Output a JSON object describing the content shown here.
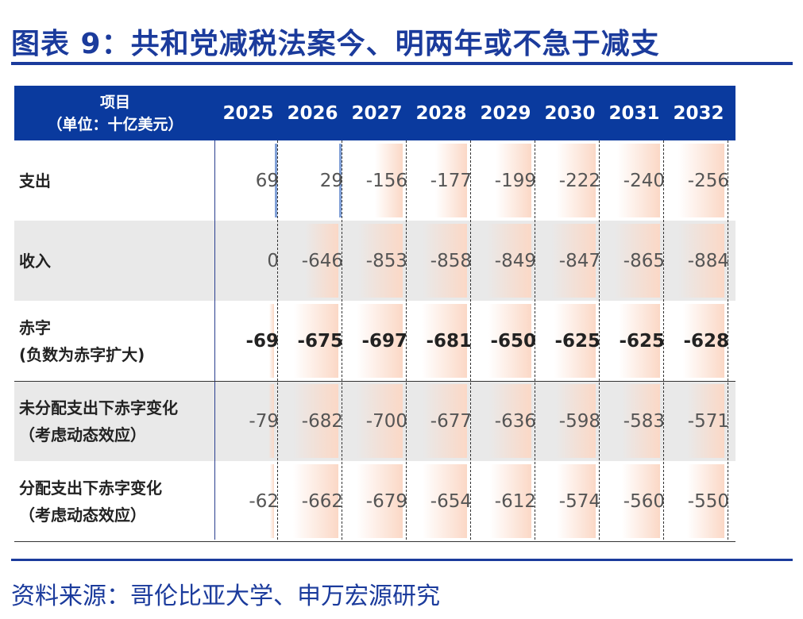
{
  "title": "图表 9：共和党减税法案今、明两年或不急于减支",
  "source": "资料来源：哥伦比亚大学、申万宏源研究",
  "table": {
    "header_label_line1": "项目",
    "header_label_line2": "（单位：十亿美元）",
    "years": [
      "2025",
      "2026",
      "2027",
      "2028",
      "2029",
      "2030",
      "2031",
      "2032"
    ],
    "rows": [
      {
        "label1": "支出",
        "label2": "",
        "values": [
          "69",
          "29",
          "-156",
          "-177",
          "-199",
          "-222",
          "-240",
          "-256"
        ]
      },
      {
        "label1": "收入",
        "label2": "",
        "values": [
          "0",
          "-646",
          "-853",
          "-858",
          "-849",
          "-847",
          "-865",
          "-884"
        ]
      },
      {
        "label1": "赤字",
        "label2": "(负数为赤字扩大)",
        "values": [
          "-69",
          "-675",
          "-697",
          "-681",
          "-650",
          "-625",
          "-625",
          "-628"
        ]
      },
      {
        "label1": "未分配支出下赤字变化",
        "label2": "（考虑动态效应）",
        "values": [
          "-79",
          "-682",
          "-700",
          "-677",
          "-636",
          "-598",
          "-583",
          "-571"
        ]
      },
      {
        "label1": "分配支出下赤字变化",
        "label2": "（考虑动态效应）",
        "values": [
          "-62",
          "-662",
          "-679",
          "-654",
          "-612",
          "-574",
          "-560",
          "-550"
        ]
      }
    ]
  }
}
